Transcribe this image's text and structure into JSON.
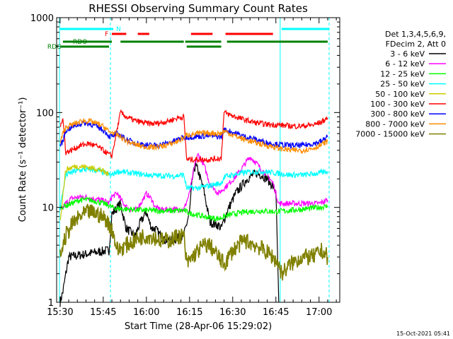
{
  "chart_data": {
    "type": "line",
    "title": "RHESSI Observing Summary Count Rates",
    "xlabel": "Start Time (28-Apr-06 15:29:02)",
    "ylabel": "Count Rate (s⁻¹ detector⁻¹)",
    "footer_timestamp": "15-Oct-2021 05:41",
    "y_scale": "log",
    "ylim": [
      1,
      1000
    ],
    "xlim_min": [
      15.48,
      17.12
    ],
    "xticks": [
      "15:30",
      "15:45",
      "16:00",
      "16:15",
      "16:30",
      "16:45",
      "17:00"
    ],
    "xtick_values_min": [
      930,
      945,
      960,
      975,
      990,
      1005,
      1020
    ],
    "yticks": [
      "1",
      "10",
      "100",
      "1000"
    ],
    "ytick_values": [
      1,
      10,
      100,
      1000
    ],
    "legend": {
      "header_lines": [
        "Det 1,3,4,5,6,9,",
        "FDecim 2, Att 0"
      ],
      "placement": "right",
      "entries": [
        {
          "label": "3 - 6 keV",
          "color": "#000000"
        },
        {
          "label": "6 - 12 keV",
          "color": "#ff00ff"
        },
        {
          "label": "12 - 25 keV",
          "color": "#00ff00"
        },
        {
          "label": "25 - 50 keV",
          "color": "#00ffff"
        },
        {
          "label": "50 - 100 keV",
          "color": "#cccc00"
        },
        {
          "label": "100 - 300 keV",
          "color": "#ff0000"
        },
        {
          "label": "300 - 800 keV",
          "color": "#0000ff"
        },
        {
          "label": "800 - 7000 keV",
          "color": "#ff8c00"
        },
        {
          "label": "7000 - 15000 keV",
          "color": "#808000"
        }
      ]
    },
    "flags": [
      {
        "label": "N",
        "color": "#00ffff",
        "segments_min": [
          [
            930,
            948.5
          ],
          [
            1007,
            1023.5
          ]
        ]
      },
      {
        "label": "F",
        "color": "#ff0000",
        "segments_min": [
          [
            948,
            953
          ],
          [
            957,
            961
          ],
          [
            975.5,
            983
          ],
          [
            987.5,
            1004
          ]
        ]
      },
      {
        "label": "RDO",
        "color": "#008000",
        "segments_min": [
          [
            931,
            948
          ],
          [
            951,
            973
          ],
          [
            973.5,
            986
          ],
          [
            988,
            1023
          ]
        ]
      },
      {
        "label": "RDC",
        "color": "#008000",
        "segments_min": [
          [
            930,
            947
          ],
          [
            974,
            986
          ]
        ]
      }
    ],
    "vertical_markers_min": [
      929.8,
      947.5,
      1006.5,
      1023.5
    ],
    "series": [
      {
        "name": "3 - 6 keV",
        "color": "#000000",
        "x": [
          930,
          931,
          932,
          933,
          946,
          947,
          948,
          951,
          952,
          953,
          956,
          958,
          960,
          961,
          962,
          963,
          965,
          966,
          967,
          969,
          973,
          975,
          976,
          977,
          978,
          980,
          982,
          985,
          986,
          988,
          991,
          995,
          998,
          1000,
          1002,
          1005,
          1006
        ],
        "y": [
          1,
          1.3,
          2,
          3,
          3.5,
          3.5,
          8.5,
          11,
          8,
          6,
          5,
          7,
          9,
          7,
          6,
          6,
          5,
          4.5,
          4.5,
          4.5,
          5,
          9,
          20,
          28,
          24,
          15,
          7,
          6.5,
          6,
          9,
          14,
          20,
          23,
          22,
          20,
          15,
          1
        ]
      },
      {
        "name": "6 - 12 keV",
        "color": "#ff00ff",
        "x": [
          930,
          931,
          932,
          934,
          938,
          941,
          944,
          946,
          947,
          948,
          950,
          952,
          954,
          956,
          958,
          960,
          962,
          963,
          965,
          967,
          970,
          973,
          975,
          977,
          978,
          980,
          982,
          985,
          988,
          991,
          994,
          996,
          998,
          1000,
          1002,
          1004,
          1006,
          1010,
          1015,
          1020,
          1023
        ],
        "y": [
          9,
          10,
          11,
          12.5,
          13,
          12.5,
          12,
          11.5,
          11,
          13,
          14,
          11,
          9.5,
          9.2,
          11,
          14,
          12,
          10,
          9.5,
          9.5,
          9.5,
          9.5,
          14,
          30,
          36,
          28,
          18,
          14,
          17,
          21,
          28,
          34,
          30,
          25,
          22,
          18,
          11,
          11,
          11,
          11,
          12
        ]
      },
      {
        "name": "12 - 25 keV",
        "color": "#00ff00",
        "x": [
          930,
          932,
          934,
          937,
          940,
          943,
          945,
          947,
          948,
          950,
          955,
          960,
          965,
          970,
          973,
          975,
          980,
          985,
          987,
          990,
          995,
          1000,
          1005,
          1010,
          1015,
          1020,
          1023
        ],
        "y": [
          10,
          10.5,
          11,
          12,
          12,
          11.5,
          11,
          10.5,
          10,
          9.7,
          9.5,
          9.3,
          9.2,
          9.2,
          9.3,
          8.7,
          8,
          7.6,
          8,
          8.5,
          9,
          9.2,
          9,
          9.3,
          9.6,
          10,
          10.3
        ]
      },
      {
        "name": "25 - 50 keV",
        "color": "#00ffff",
        "x": [
          930,
          932,
          935,
          938,
          941,
          944,
          947,
          948,
          950,
          955,
          960,
          965,
          970,
          973,
          974,
          978,
          982,
          986,
          987,
          990,
          995,
          1000,
          1005,
          1010,
          1015,
          1020,
          1023
        ],
        "y": [
          10,
          22,
          24,
          25,
          25,
          24,
          22,
          22,
          24,
          23,
          22,
          21.5,
          21.5,
          22,
          16,
          16,
          17,
          18,
          21,
          22,
          23.5,
          24,
          23,
          22,
          22,
          23,
          24
        ]
      },
      {
        "name": "50 - 100 keV",
        "color": "#cccc00",
        "x": [
          930,
          931,
          932,
          935,
          938,
          941,
          944,
          946,
          947
        ],
        "y": [
          7,
          14,
          25,
          27,
          27,
          26,
          25,
          23,
          22
        ]
      },
      {
        "name": "100 - 300 keV",
        "color": "#ff0000",
        "x": [
          930,
          931,
          932,
          934,
          937,
          940,
          942,
          944,
          946,
          947,
          948,
          951,
          953,
          956,
          959,
          962,
          965,
          968,
          971,
          973,
          974,
          978,
          982,
          986,
          987,
          990,
          994,
          998,
          1002,
          1006,
          1010,
          1014,
          1018,
          1021,
          1023
        ],
        "y": [
          75,
          85,
          38,
          40,
          45,
          47,
          45,
          42,
          38,
          36,
          35,
          100,
          90,
          82,
          78,
          76,
          78,
          82,
          88,
          90,
          32,
          32,
          32,
          33,
          100,
          92,
          84,
          78,
          75,
          74,
          72,
          72,
          74,
          80,
          88
        ]
      },
      {
        "name": "300 - 800 keV",
        "color": "#0000ff",
        "x": [
          930,
          931,
          932,
          935,
          938,
          941,
          944,
          946,
          947,
          948,
          950,
          953,
          956,
          959,
          962,
          965,
          968,
          971,
          973,
          974,
          978,
          982,
          986,
          987,
          990,
          994,
          998,
          1002,
          1006,
          1010,
          1014,
          1018,
          1021,
          1023
        ],
        "y": [
          45,
          50,
          65,
          72,
          78,
          75,
          68,
          62,
          56,
          56,
          60,
          52,
          48,
          46,
          45,
          46,
          48,
          52,
          55,
          55,
          56,
          57,
          55,
          66,
          62,
          56,
          52,
          48,
          46,
          45,
          45,
          47,
          50,
          57
        ]
      },
      {
        "name": "800 - 7000 keV",
        "color": "#ff8c00",
        "x": [
          930,
          931,
          932,
          935,
          938,
          941,
          944,
          946,
          947,
          948,
          950,
          953,
          956,
          959,
          962,
          965,
          968,
          971,
          973,
          974,
          978,
          982,
          986,
          987,
          990,
          994,
          998,
          1002,
          1006,
          1010,
          1014,
          1018,
          1021,
          1023
        ],
        "y": [
          48,
          60,
          70,
          76,
          82,
          80,
          74,
          68,
          62,
          62,
          58,
          50,
          46,
          44,
          43,
          44,
          46,
          50,
          54,
          58,
          60,
          61,
          60,
          64,
          58,
          52,
          48,
          45,
          42,
          40,
          40,
          42,
          46,
          50
        ]
      },
      {
        "name": "7000 - 15000 keV",
        "color": "#808000",
        "x": [
          930,
          931,
          932,
          934,
          937,
          940,
          943,
          946,
          947,
          948,
          950,
          953,
          956,
          959,
          962,
          965,
          968,
          971,
          973,
          974,
          976,
          978,
          980,
          982,
          985,
          987,
          990,
          994,
          998,
          1001,
          1004,
          1006,
          1007,
          1010,
          1014,
          1018,
          1021,
          1023
        ],
        "y": [
          3,
          4,
          5,
          6.5,
          8,
          9,
          8.5,
          7.5,
          6.5,
          6,
          3.5,
          4,
          4.5,
          5,
          5,
          4.5,
          4.5,
          5,
          5,
          2.5,
          3,
          3.5,
          4,
          4,
          3,
          2.5,
          3.5,
          4.5,
          4,
          3.5,
          3,
          2.5,
          2,
          2.5,
          3,
          3,
          3.5,
          3
        ]
      }
    ]
  }
}
